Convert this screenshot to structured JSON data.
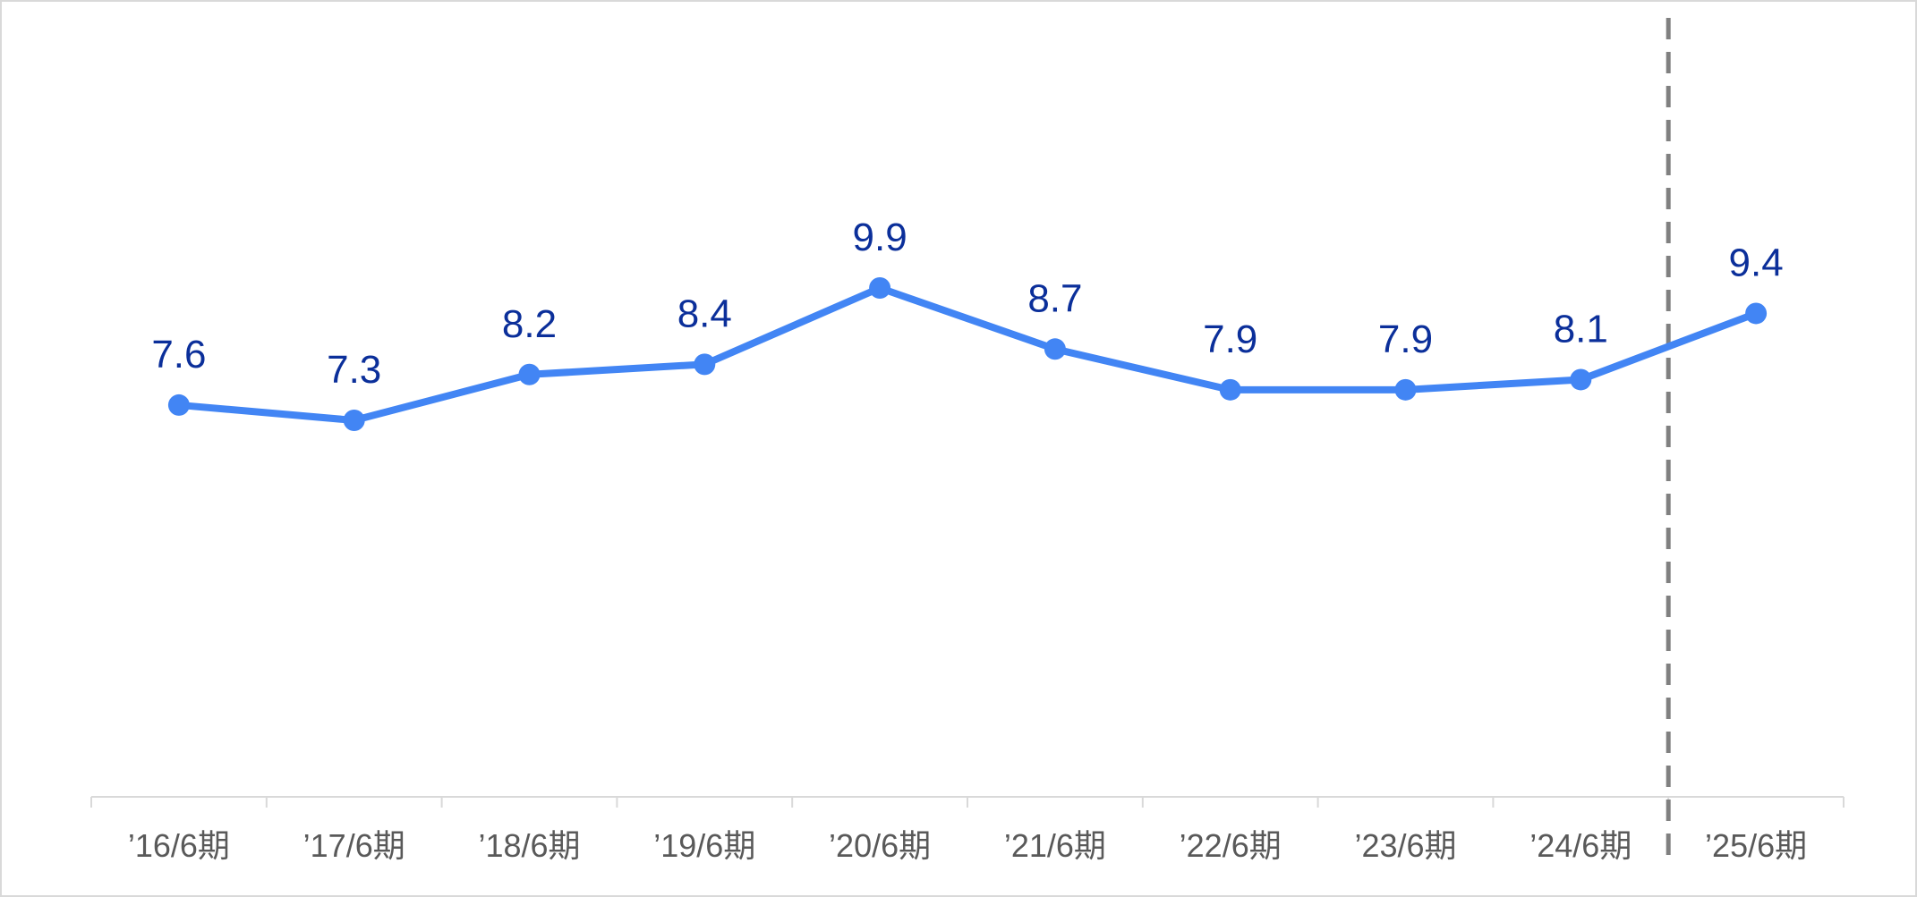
{
  "chart_data": {
    "type": "line",
    "categories": [
      "’16/6期",
      "’17/6期",
      "’18/6期",
      "’19/6期",
      "’20/6期",
      "’21/6期",
      "’22/6期",
      "’23/6期",
      "’24/6期",
      "’25/6期"
    ],
    "series": [
      {
        "values": [
          7.6,
          7.3,
          8.2,
          8.4,
          9.9,
          8.7,
          7.9,
          7.9,
          8.1,
          9.4
        ],
        "labels": [
          "7.6",
          "7.3",
          "8.2",
          "8.4",
          "9.9",
          "8.7",
          "7.9",
          "7.9",
          "8.1",
          "9.4"
        ],
        "color": "#4285f4"
      }
    ],
    "data_label_color": "#0b2f9a",
    "divider_after_category": "’24/6期",
    "divider_color": "#808080",
    "divider_style": "dashed",
    "title": "",
    "xlabel": "",
    "ylabel": "",
    "y_axis_visible": false,
    "grid": false,
    "legend": false
  }
}
